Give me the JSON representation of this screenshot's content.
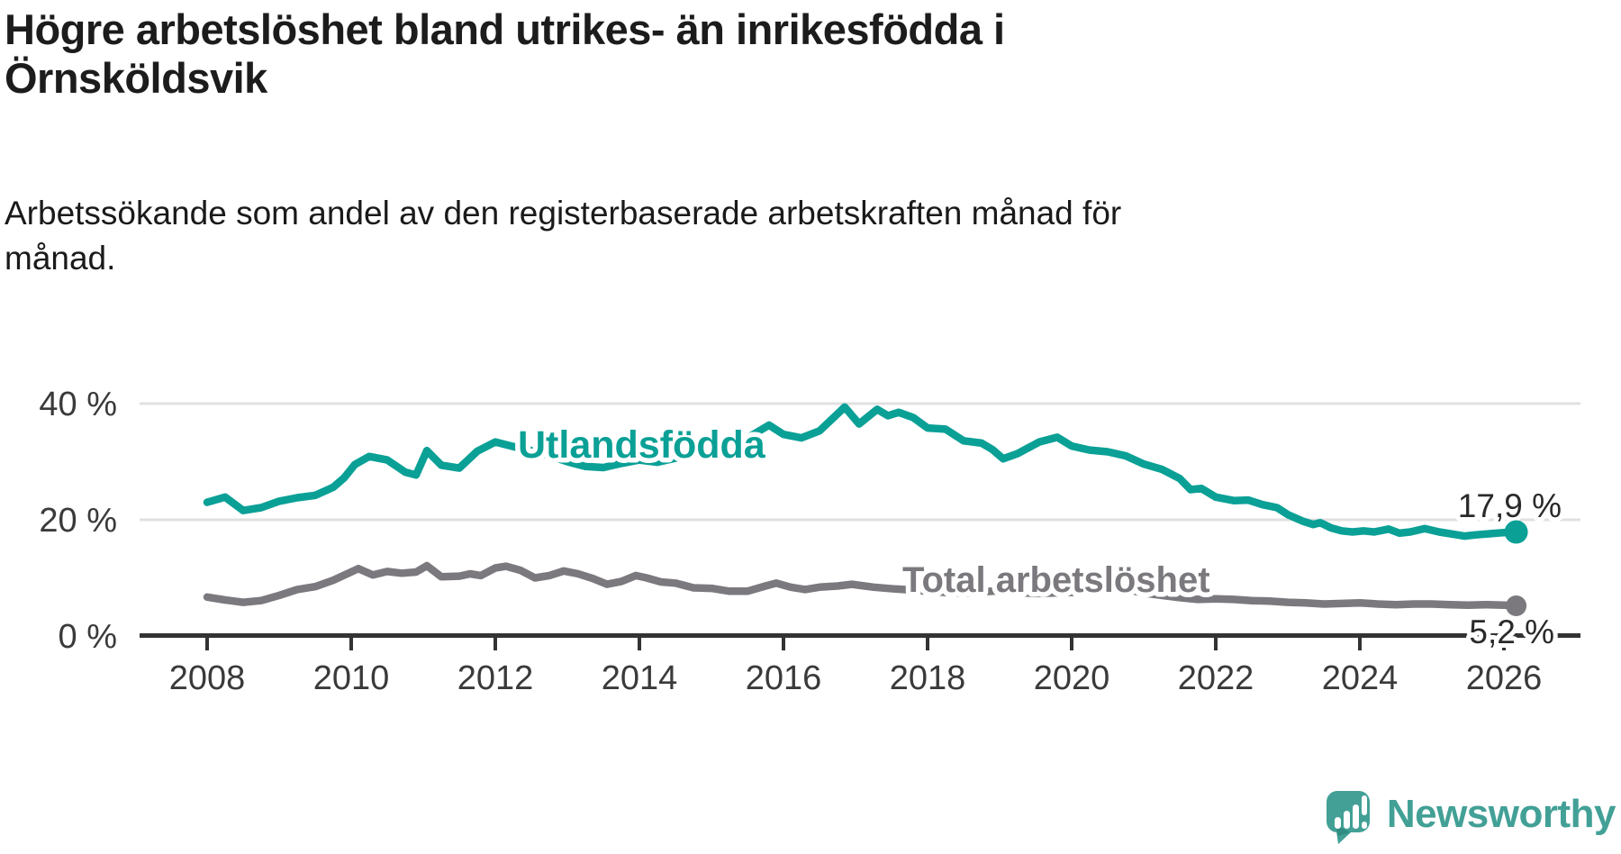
{
  "header": {
    "title_lines": [
      "Högre arbetslöshet bland utrikes- än inrikesfödda i",
      "Örnsköldsvik"
    ],
    "subtitle_lines": [
      "Arbetssökande som andel av den registerbaserade arbetskraften månad för",
      "månad."
    ]
  },
  "chart_data": {
    "type": "line",
    "unit": "%",
    "grid": true,
    "legend_position": "inline-labels",
    "x_axis": {
      "range": [
        2008,
        2026.2
      ],
      "ticks": [
        {
          "year": 2008,
          "label": "2008"
        },
        {
          "year": 2010,
          "label": "2010"
        },
        {
          "year": 2012,
          "label": "2012"
        },
        {
          "year": 2014,
          "label": "2014"
        },
        {
          "year": 2016,
          "label": "2016"
        },
        {
          "year": 2018,
          "label": "2018"
        },
        {
          "year": 2020,
          "label": "2020"
        },
        {
          "year": 2022,
          "label": "2022"
        },
        {
          "year": 2024,
          "label": "2024"
        },
        {
          "year": 2026,
          "label": "2026"
        }
      ]
    },
    "y_axis": {
      "range": [
        0,
        44
      ],
      "ticks": [
        {
          "value": 40,
          "label": "40 %"
        },
        {
          "value": 20,
          "label": "20 %"
        },
        {
          "value": 0,
          "label": "0 %"
        }
      ]
    },
    "series": [
      {
        "name": "Utlandsfödda",
        "color": "#0aa096",
        "end_label": "17,9 %",
        "end_value": 17.9,
        "points": [
          [
            2008.0,
            23.0
          ],
          [
            2008.25,
            23.9
          ],
          [
            2008.5,
            21.6
          ],
          [
            2008.75,
            22.1
          ],
          [
            2009.0,
            23.2
          ],
          [
            2009.25,
            23.8
          ],
          [
            2009.5,
            24.2
          ],
          [
            2009.75,
            25.6
          ],
          [
            2009.9,
            27.2
          ],
          [
            2010.05,
            29.5
          ],
          [
            2010.25,
            30.9
          ],
          [
            2010.5,
            30.3
          ],
          [
            2010.75,
            28.2
          ],
          [
            2010.9,
            27.7
          ],
          [
            2011.05,
            31.9
          ],
          [
            2011.25,
            29.4
          ],
          [
            2011.5,
            28.9
          ],
          [
            2011.75,
            31.8
          ],
          [
            2012.0,
            33.4
          ],
          [
            2012.25,
            32.6
          ],
          [
            2012.5,
            31.9
          ],
          [
            2012.75,
            31.0
          ],
          [
            2013.0,
            30.0
          ],
          [
            2013.25,
            29.2
          ],
          [
            2013.5,
            29.0
          ],
          [
            2013.75,
            29.7
          ],
          [
            2014.0,
            30.3
          ],
          [
            2014.25,
            29.9
          ],
          [
            2014.5,
            30.6
          ],
          [
            2014.75,
            31.1
          ],
          [
            2015.0,
            31.8
          ],
          [
            2015.25,
            32.8
          ],
          [
            2015.5,
            34.1
          ],
          [
            2015.8,
            36.3
          ],
          [
            2016.0,
            34.7
          ],
          [
            2016.25,
            34.1
          ],
          [
            2016.5,
            35.3
          ],
          [
            2016.85,
            39.4
          ],
          [
            2017.05,
            36.5
          ],
          [
            2017.3,
            39.0
          ],
          [
            2017.45,
            37.9
          ],
          [
            2017.6,
            38.5
          ],
          [
            2017.8,
            37.6
          ],
          [
            2018.0,
            35.8
          ],
          [
            2018.25,
            35.6
          ],
          [
            2018.5,
            33.6
          ],
          [
            2018.75,
            33.2
          ],
          [
            2018.9,
            32.1
          ],
          [
            2019.05,
            30.5
          ],
          [
            2019.25,
            31.4
          ],
          [
            2019.55,
            33.4
          ],
          [
            2019.8,
            34.2
          ],
          [
            2020.0,
            32.7
          ],
          [
            2020.25,
            32.0
          ],
          [
            2020.5,
            31.7
          ],
          [
            2020.75,
            31.0
          ],
          [
            2021.0,
            29.6
          ],
          [
            2021.25,
            28.7
          ],
          [
            2021.5,
            27.1
          ],
          [
            2021.65,
            25.2
          ],
          [
            2021.8,
            25.4
          ],
          [
            2022.0,
            23.9
          ],
          [
            2022.25,
            23.3
          ],
          [
            2022.45,
            23.4
          ],
          [
            2022.65,
            22.6
          ],
          [
            2022.85,
            22.1
          ],
          [
            2023.0,
            20.9
          ],
          [
            2023.2,
            19.8
          ],
          [
            2023.35,
            19.2
          ],
          [
            2023.45,
            19.5
          ],
          [
            2023.6,
            18.6
          ],
          [
            2023.75,
            18.1
          ],
          [
            2023.9,
            17.9
          ],
          [
            2024.05,
            18.1
          ],
          [
            2024.2,
            17.9
          ],
          [
            2024.4,
            18.4
          ],
          [
            2024.55,
            17.7
          ],
          [
            2024.7,
            17.9
          ],
          [
            2024.9,
            18.5
          ],
          [
            2025.1,
            17.9
          ],
          [
            2025.3,
            17.5
          ],
          [
            2025.45,
            17.2
          ],
          [
            2025.6,
            17.4
          ],
          [
            2025.8,
            17.6
          ],
          [
            2026.0,
            17.8
          ],
          [
            2026.17,
            17.9
          ]
        ]
      },
      {
        "name": "Total arbetslöshet",
        "color": "#7b797e",
        "end_label": "5,2 %",
        "end_value": 5.2,
        "points": [
          [
            2008.0,
            6.7
          ],
          [
            2008.25,
            6.2
          ],
          [
            2008.5,
            5.8
          ],
          [
            2008.75,
            6.1
          ],
          [
            2009.0,
            7.0
          ],
          [
            2009.25,
            8.0
          ],
          [
            2009.5,
            8.5
          ],
          [
            2009.75,
            9.6
          ],
          [
            2010.1,
            11.6
          ],
          [
            2010.3,
            10.5
          ],
          [
            2010.5,
            11.1
          ],
          [
            2010.7,
            10.8
          ],
          [
            2010.9,
            11.0
          ],
          [
            2011.05,
            12.1
          ],
          [
            2011.25,
            10.2
          ],
          [
            2011.5,
            10.3
          ],
          [
            2011.65,
            10.7
          ],
          [
            2011.8,
            10.4
          ],
          [
            2012.0,
            11.7
          ],
          [
            2012.15,
            12.0
          ],
          [
            2012.35,
            11.3
          ],
          [
            2012.55,
            10.0
          ],
          [
            2012.75,
            10.4
          ],
          [
            2012.95,
            11.2
          ],
          [
            2013.15,
            10.7
          ],
          [
            2013.35,
            9.9
          ],
          [
            2013.55,
            8.9
          ],
          [
            2013.75,
            9.4
          ],
          [
            2013.95,
            10.4
          ],
          [
            2014.1,
            10.0
          ],
          [
            2014.3,
            9.3
          ],
          [
            2014.5,
            9.1
          ],
          [
            2014.75,
            8.3
          ],
          [
            2015.0,
            8.2
          ],
          [
            2015.25,
            7.7
          ],
          [
            2015.5,
            7.7
          ],
          [
            2015.75,
            8.6
          ],
          [
            2015.9,
            9.1
          ],
          [
            2016.1,
            8.4
          ],
          [
            2016.3,
            8.0
          ],
          [
            2016.5,
            8.4
          ],
          [
            2016.75,
            8.6
          ],
          [
            2016.95,
            8.9
          ],
          [
            2017.25,
            8.4
          ],
          [
            2017.55,
            8.1
          ],
          [
            2017.8,
            7.9
          ],
          [
            2018.0,
            7.7
          ],
          [
            2018.25,
            7.5
          ],
          [
            2018.5,
            7.4
          ],
          [
            2018.75,
            7.6
          ],
          [
            2019.0,
            7.8
          ],
          [
            2019.25,
            7.5
          ],
          [
            2019.5,
            7.3
          ],
          [
            2019.75,
            7.4
          ],
          [
            2020.0,
            7.5
          ],
          [
            2020.3,
            8.0
          ],
          [
            2020.55,
            8.3
          ],
          [
            2020.8,
            7.9
          ],
          [
            2021.0,
            7.4
          ],
          [
            2021.25,
            7.0
          ],
          [
            2021.5,
            6.6
          ],
          [
            2021.75,
            6.3
          ],
          [
            2022.0,
            6.4
          ],
          [
            2022.25,
            6.3
          ],
          [
            2022.5,
            6.1
          ],
          [
            2022.75,
            6.0
          ],
          [
            2023.0,
            5.8
          ],
          [
            2023.25,
            5.7
          ],
          [
            2023.5,
            5.5
          ],
          [
            2023.75,
            5.6
          ],
          [
            2024.0,
            5.7
          ],
          [
            2024.25,
            5.5
          ],
          [
            2024.5,
            5.4
          ],
          [
            2024.75,
            5.5
          ],
          [
            2025.0,
            5.5
          ],
          [
            2025.25,
            5.4
          ],
          [
            2025.5,
            5.3
          ],
          [
            2025.75,
            5.4
          ],
          [
            2026.0,
            5.3
          ],
          [
            2026.17,
            5.2
          ]
        ]
      }
    ]
  },
  "footer": {
    "brand": "Newsworthy",
    "brand_color": "#42a096"
  },
  "style": {
    "accent_teal": "#0aa096",
    "neutral_gray": "#7b797e",
    "axis_color": "#333333",
    "gridline_color": "#e0e0e0",
    "text_color": "#2a2a2a"
  }
}
